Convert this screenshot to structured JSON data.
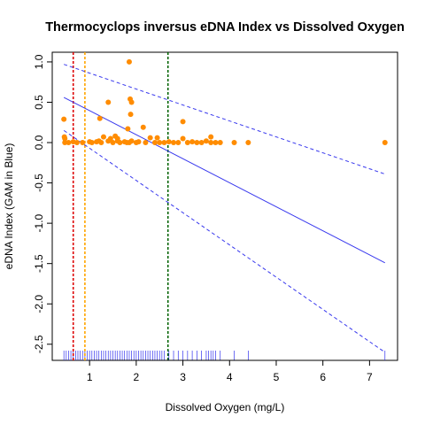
{
  "chart_data": {
    "type": "scatter",
    "title": "Thermocyclops inversus eDNA Index vs Dissolved Oxygen",
    "xlabel": "Dissolved Oxygen (mg/L)",
    "ylabel": "eDNA Index (GAM in Blue)",
    "xlim": [
      0.2,
      7.6
    ],
    "ylim": [
      -2.7,
      1.12
    ],
    "x_ticks": [
      "1",
      "2",
      "3",
      "4",
      "5",
      "6",
      "7"
    ],
    "y_ticks": [
      "1.0",
      "0.5",
      "0.0",
      "-0.5",
      "-1.0",
      "-1.5",
      "-2.0",
      "-2.5"
    ],
    "grid": false,
    "legend": "none",
    "points": {
      "name": "",
      "color": "#ff8c00",
      "x": [
        0.45,
        0.46,
        0.47,
        0.47,
        0.55,
        0.65,
        0.73,
        0.85,
        1.0,
        1.05,
        1.15,
        1.2,
        1.25,
        1.3,
        1.4,
        1.45,
        1.5,
        1.55,
        1.6,
        1.65,
        1.75,
        1.8,
        1.85,
        1.9,
        2.0,
        2.05,
        2.2,
        2.3,
        2.4,
        2.5,
        2.6,
        2.7,
        2.8,
        2.9,
        3.0,
        3.1,
        3.2,
        3.3,
        3.4,
        3.5,
        3.6,
        3.7,
        3.8,
        4.1,
        4.4,
        7.33,
        1.22,
        1.4,
        1.85,
        1.87,
        1.9,
        1.88,
        1.82,
        2.15,
        3.0,
        3.6,
        2.45,
        1.6
      ],
      "y": [
        0.29,
        0.07,
        0.05,
        0.0,
        0.0,
        0.01,
        0.0,
        0.0,
        0.01,
        0.0,
        0.01,
        0.02,
        0.0,
        0.07,
        0.02,
        0.05,
        0.0,
        0.08,
        0.02,
        0.0,
        0.01,
        0.0,
        0.0,
        0.02,
        0.0,
        0.01,
        0.0,
        0.06,
        0.0,
        0.0,
        0.0,
        0.01,
        0.0,
        0.0,
        0.05,
        0.0,
        0.01,
        0.0,
        0.0,
        0.02,
        0.0,
        0.0,
        0.0,
        0.0,
        0.0,
        0.0,
        0.3,
        0.5,
        1.0,
        0.54,
        0.5,
        0.35,
        0.17,
        0.19,
        0.26,
        0.07,
        0.06,
        0.05
      ]
    },
    "gam_fit": {
      "color": "#3a3aee",
      "x": [
        0.45,
        7.33
      ],
      "y": [
        0.56,
        -1.49
      ],
      "upper": [
        0.97,
        -0.39
      ],
      "lower": [
        0.15,
        -2.6
      ]
    },
    "vlines": [
      {
        "x": 0.65,
        "color": "#dd0000"
      },
      {
        "x": 0.9,
        "color": "#ffa500"
      },
      {
        "x": 2.68,
        "color": "#006400"
      }
    ],
    "rug": {
      "color": "#3333ee",
      "x": [
        0.45,
        0.5,
        0.55,
        0.6,
        0.65,
        0.7,
        0.75,
        0.8,
        0.85,
        0.9,
        0.95,
        1.0,
        1.05,
        1.1,
        1.15,
        1.2,
        1.25,
        1.3,
        1.35,
        1.4,
        1.45,
        1.5,
        1.55,
        1.6,
        1.65,
        1.7,
        1.75,
        1.8,
        1.85,
        1.9,
        1.95,
        2.0,
        2.05,
        2.1,
        2.15,
        2.2,
        2.25,
        2.3,
        2.35,
        2.4,
        2.45,
        2.5,
        2.55,
        2.6,
        2.7,
        2.8,
        2.9,
        3.0,
        3.1,
        3.2,
        3.3,
        3.4,
        3.5,
        3.55,
        3.6,
        3.65,
        3.7,
        3.8,
        4.1,
        4.4,
        7.33
      ]
    }
  }
}
